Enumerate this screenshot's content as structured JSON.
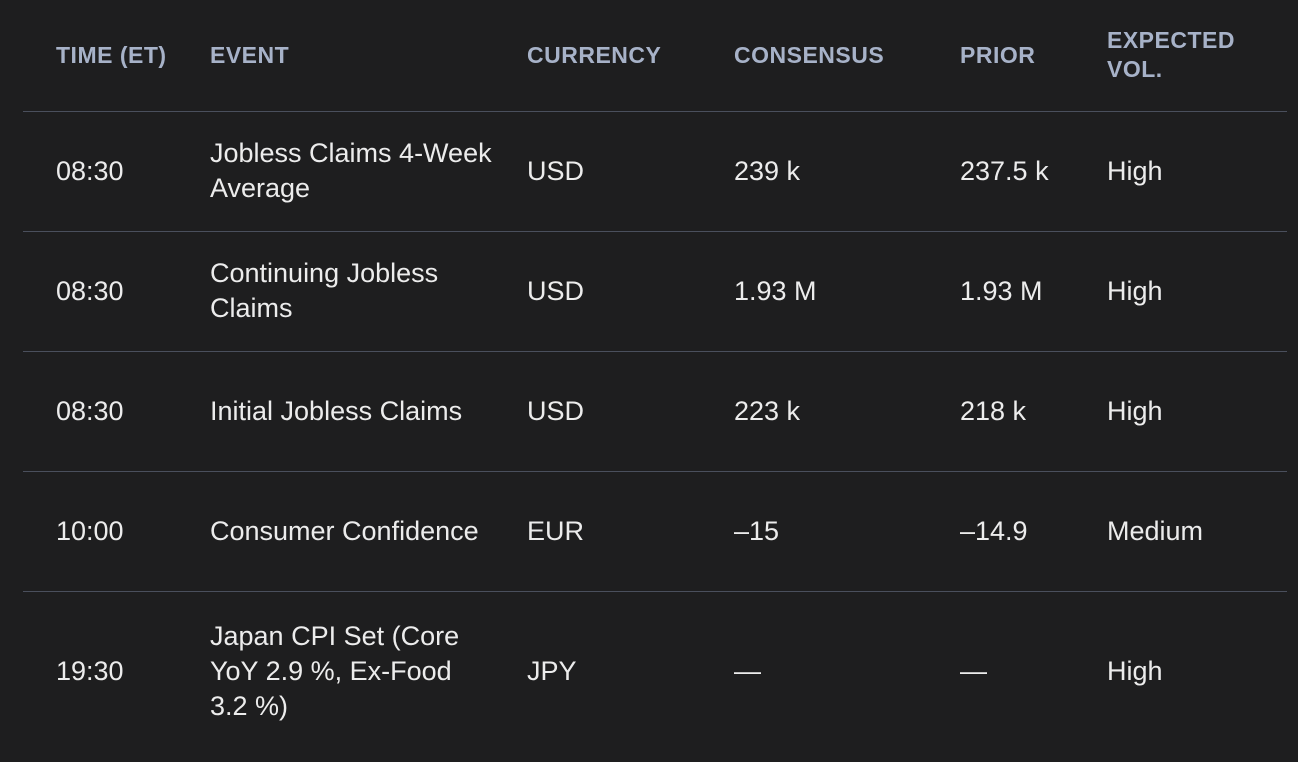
{
  "headers": {
    "time": "TIME (ET)",
    "event": "EVENT",
    "currency": "CURRENCY",
    "consensus": "CONSENSUS",
    "prior": "PRIOR",
    "volume": "EXPECTED VOL."
  },
  "rows": [
    {
      "time": "08:30",
      "event": "Jobless Claims 4-Week Average",
      "currency": "USD",
      "consensus": "239 k",
      "prior": "237.5 k",
      "volume": "High"
    },
    {
      "time": "08:30",
      "event": "Continuing Jobless Claims",
      "currency": "USD",
      "consensus": "1.93 M",
      "prior": "1.93 M",
      "volume": "High"
    },
    {
      "time": "08:30",
      "event": "Initial Jobless Claims",
      "currency": "USD",
      "consensus": "223 k",
      "prior": "218 k",
      "volume": "High"
    },
    {
      "time": "10:00",
      "event": "Consumer Confidence",
      "currency": "EUR",
      "consensus": "–15",
      "prior": "–14.9",
      "volume": "Medium"
    },
    {
      "time": "19:30",
      "event": "Japan CPI Set (Core YoY 2.9 %, Ex-Food 3.2 %)",
      "currency": "JPY",
      "consensus": "—",
      "prior": "—",
      "volume": "High"
    }
  ]
}
